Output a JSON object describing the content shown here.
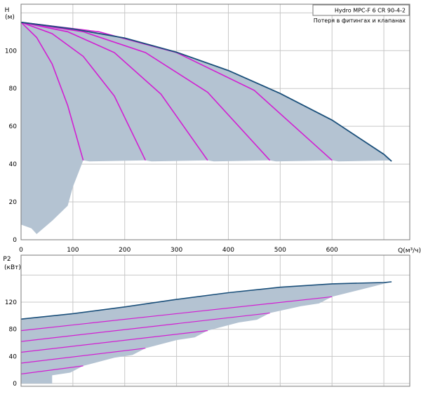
{
  "chart_data": [
    {
      "type": "line",
      "title": "Hydro MPC-F 6 CR 90-4-2",
      "legend_text": "Потеря в фитингах и клапанах",
      "ylabel": "H",
      "yunit": "(м)",
      "xlabel": "Q(м³/ч)",
      "xlim": [
        0,
        750
      ],
      "ylim": [
        0,
        120
      ],
      "xticks": [
        0,
        100,
        200,
        300,
        400,
        500,
        600
      ],
      "yticks": [
        0,
        20,
        40,
        60,
        80,
        100
      ],
      "grid": true,
      "colors": {
        "curve": "#d21ed2",
        "envelope": "#1a4f7a",
        "area": "#b4c3d2"
      },
      "envelope_series": {
        "name": "",
        "x": [
          0,
          100,
          200,
          300,
          400,
          500,
          600,
          700,
          715
        ],
        "y": [
          115,
          111.5,
          106.7,
          99.2,
          89.5,
          77.4,
          63.3,
          45.2,
          41.5
        ]
      },
      "series": [
        {
          "name": "",
          "x": [
            0,
            30,
            60,
            90,
            120
          ],
          "y": [
            115,
            107,
            93,
            71,
            42
          ]
        },
        {
          "name": "",
          "x": [
            0,
            60,
            120,
            180,
            240
          ],
          "y": [
            115,
            109,
            97,
            76,
            42
          ]
        },
        {
          "name": "",
          "x": [
            0,
            90,
            180,
            270,
            360
          ],
          "y": [
            115,
            110,
            99,
            77,
            42
          ]
        },
        {
          "name": "",
          "x": [
            0,
            120,
            240,
            360,
            480
          ],
          "y": [
            115,
            110,
            99,
            78,
            42
          ]
        },
        {
          "name": "",
          "x": [
            0,
            150,
            300,
            450,
            600
          ],
          "y": [
            115,
            110,
            99,
            79,
            42
          ]
        }
      ],
      "min_head": 42,
      "lower_area": {
        "x": [
          0,
          20,
          30,
          60,
          90,
          100,
          110,
          120
        ],
        "y": [
          8,
          6,
          3,
          10,
          18,
          28,
          35,
          42
        ]
      }
    },
    {
      "type": "line",
      "ylabel": "P2",
      "yunit": "(кВт)",
      "xlim": [
        0,
        750
      ],
      "ylim": [
        0,
        160
      ],
      "yticks": [
        0,
        40,
        80,
        120
      ],
      "grid": true,
      "colors": {
        "curve": "#d21ed2",
        "envelope": "#1a4f7a",
        "area": "#b4c3d2"
      },
      "envelope_series": {
        "name": "",
        "x": [
          0,
          100,
          200,
          300,
          400,
          500,
          600,
          700,
          715
        ],
        "y": [
          95,
          103,
          113,
          124,
          134,
          142,
          147,
          149,
          150
        ]
      },
      "series": [
        {
          "name": "",
          "x": [
            0,
            120
          ],
          "y": [
            14,
            26
          ]
        },
        {
          "name": "",
          "x": [
            0,
            240
          ],
          "y": [
            30,
            52
          ]
        },
        {
          "name": "",
          "x": [
            0,
            360
          ],
          "y": [
            46,
            78
          ]
        },
        {
          "name": "",
          "x": [
            0,
            480
          ],
          "y": [
            62,
            104
          ]
        },
        {
          "name": "",
          "x": [
            0,
            600
          ],
          "y": [
            78,
            128
          ]
        }
      ]
    }
  ]
}
